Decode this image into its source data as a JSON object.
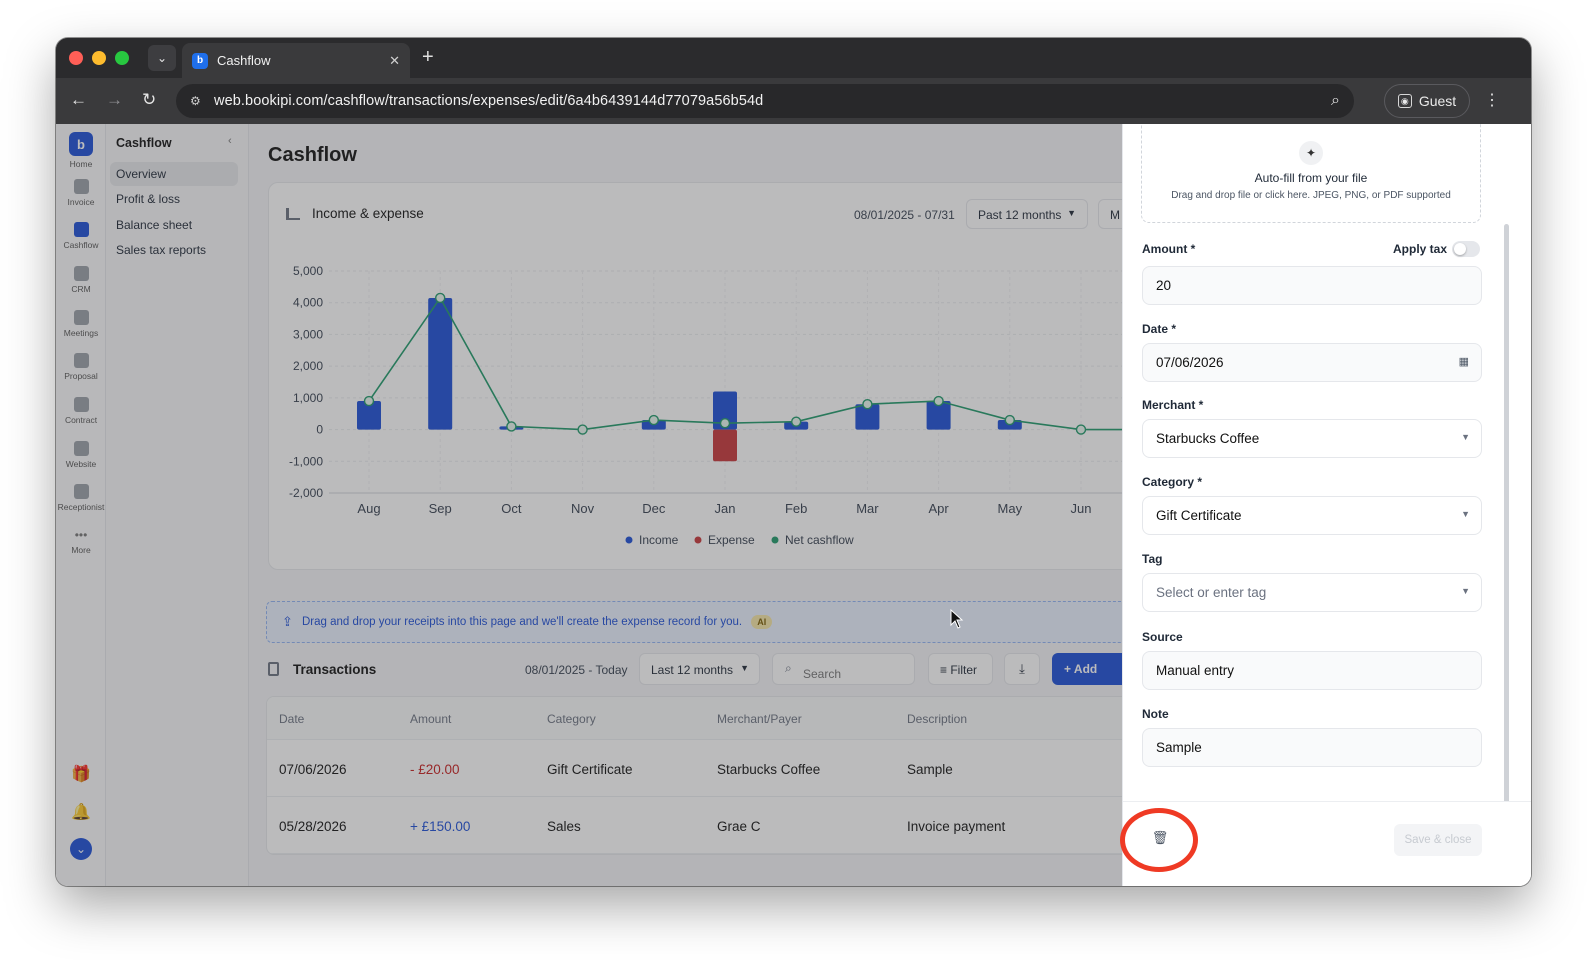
{
  "browser": {
    "tab_title": "Cashflow",
    "url": "web.bookipi.com/cashflow/transactions/expenses/edit/6a4b6439144d77079a56b54d",
    "profile": "Guest"
  },
  "rail": {
    "items": [
      {
        "label": "Home"
      },
      {
        "label": "Invoice"
      },
      {
        "label": "Cashflow"
      },
      {
        "label": "CRM"
      },
      {
        "label": "Meetings"
      },
      {
        "label": "Proposal"
      },
      {
        "label": "Contract"
      },
      {
        "label": "Website"
      },
      {
        "label": "Receptionist"
      },
      {
        "label": "More"
      }
    ]
  },
  "subnav": {
    "title": "Cashflow",
    "items": [
      "Overview",
      "Profit & loss",
      "Balance sheet",
      "Sales tax reports"
    ]
  },
  "main": {
    "title": "Cashflow",
    "chart_card": {
      "title": "Income & expense",
      "date_range": "08/01/2025 - 07/31",
      "period": "Past 12 months",
      "cut_button": "M"
    },
    "drop_banner": {
      "text": "Drag and drop your receipts into this page and we'll create the expense record for you.",
      "badge": "AI"
    },
    "transactions": {
      "title": "Transactions",
      "date_range": "08/01/2025 - Today",
      "period": "Last 12 months",
      "search_placeholder": "Search",
      "filter_label": "Filter",
      "add_label": "+ Add",
      "headers": [
        "Date",
        "Amount",
        "Category",
        "Merchant/Payer",
        "Description"
      ],
      "rows": [
        {
          "date": "07/06/2026",
          "amount": "- £20.00",
          "category": "Gift Certificate",
          "merchant": "Starbucks Coffee",
          "description": "Sample"
        },
        {
          "date": "05/28/2026",
          "amount": "+ £150.00",
          "category": "Sales",
          "merchant": "Grae C",
          "description": "Invoice payment"
        }
      ]
    }
  },
  "drawer": {
    "dropzone_title": "Auto-fill from your file",
    "dropzone_sub": "Drag and drop file or click here. JPEG, PNG, or PDF supported",
    "amount_label": "Amount *",
    "apply_tax_label": "Apply tax",
    "amount_value": "20",
    "date_label": "Date *",
    "date_value": "07/06/2026",
    "merchant_label": "Merchant *",
    "merchant_value": "Starbucks Coffee",
    "category_label": "Category *",
    "category_value": "Gift Certificate",
    "tag_label": "Tag",
    "tag_placeholder": "Select or enter tag",
    "source_label": "Source",
    "source_value": "Manual entry",
    "note_label": "Note",
    "note_value": "Sample",
    "save_label": "Save & close"
  },
  "colors": {
    "income": "#1d4fd8",
    "expense": "#c8373a",
    "net": "#1f9a6b",
    "highlight": "#ef3a24"
  },
  "chart_data": {
    "type": "bar",
    "categories": [
      "Aug",
      "Sep",
      "Oct",
      "Nov",
      "Dec",
      "Jan",
      "Feb",
      "Mar",
      "Apr",
      "May",
      "Jun"
    ],
    "series": [
      {
        "name": "Income",
        "values": [
          900,
          4150,
          100,
          0,
          300,
          1200,
          250,
          800,
          900,
          300,
          0
        ]
      },
      {
        "name": "Expense",
        "values": [
          0,
          0,
          0,
          0,
          0,
          -1000,
          0,
          0,
          0,
          0,
          0
        ]
      },
      {
        "name": "Net cashflow",
        "values": [
          900,
          4150,
          100,
          0,
          300,
          200,
          250,
          800,
          900,
          300,
          0
        ]
      }
    ],
    "yticks": [
      "5,000",
      "4,000",
      "3,000",
      "2,000",
      "1,000",
      "0",
      "-1,000",
      "-2,000"
    ],
    "ylim": [
      -2000,
      5000
    ],
    "legend_position": "bottom",
    "grid": true
  }
}
